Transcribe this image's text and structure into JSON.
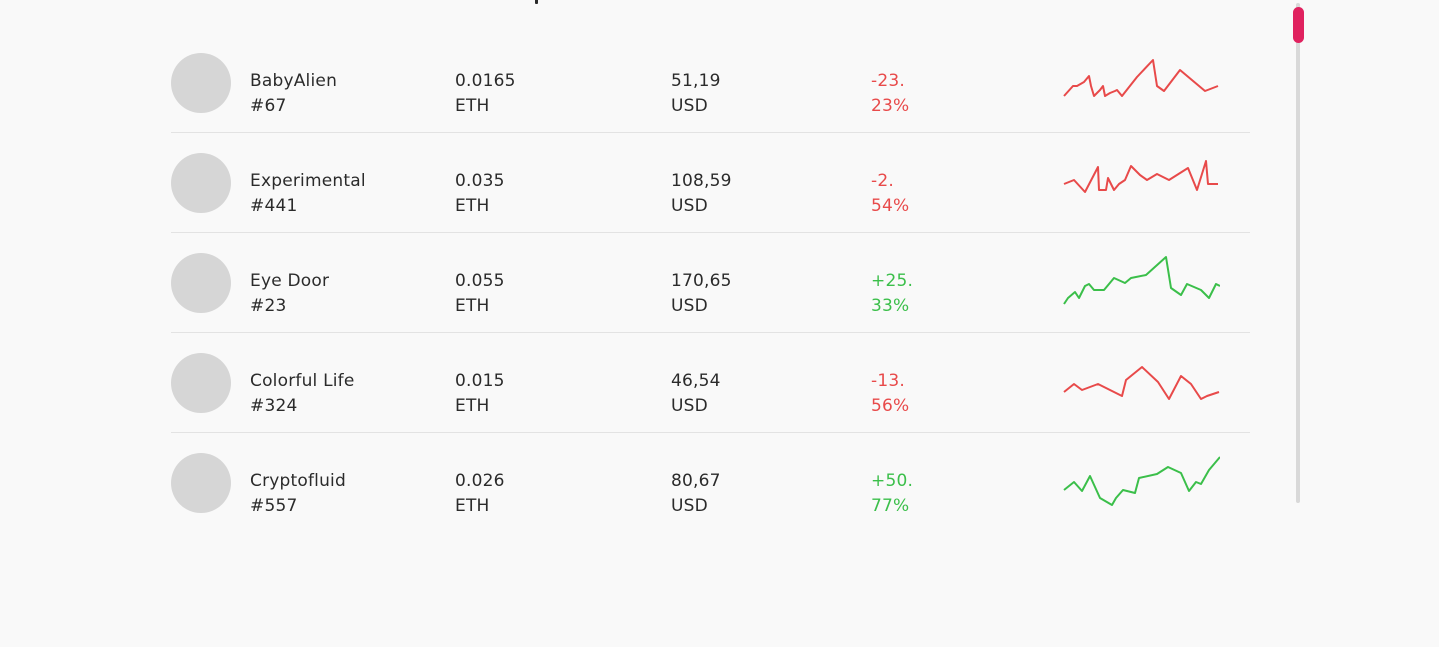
{
  "rows": [
    {
      "name": "BabyAlien",
      "id": "#67",
      "eth_value": "0.0165",
      "eth_unit": "ETH",
      "usd_value": "51,19",
      "usd_unit": "USD",
      "change_line1": "-23.",
      "change_line2": "23%",
      "trend": "neg"
    },
    {
      "name": "Experimental",
      "id": "#441",
      "eth_value": "0.035",
      "eth_unit": "ETH",
      "usd_value": "108,59",
      "usd_unit": "USD",
      "change_line1": "-2.",
      "change_line2": "54%",
      "trend": "neg"
    },
    {
      "name": "Eye Door",
      "id": "#23",
      "eth_value": "0.055",
      "eth_unit": "ETH",
      "usd_value": "170,65",
      "usd_unit": "USD",
      "change_line1": "+25.",
      "change_line2": "33%",
      "trend": "pos"
    },
    {
      "name": "Colorful Life",
      "id": "#324",
      "eth_value": "0.015",
      "eth_unit": "ETH",
      "usd_value": "46,54",
      "usd_unit": "USD",
      "change_line1": "-13.",
      "change_line2": "56%",
      "trend": "neg"
    },
    {
      "name": "Cryptofluid",
      "id": "#557",
      "eth_value": "0.026",
      "eth_unit": "ETH",
      "usd_value": "80,67",
      "usd_unit": "USD",
      "change_line1": "+50.",
      "change_line2": "77%",
      "trend": "pos"
    }
  ],
  "colors": {
    "negative": "#e84a4a",
    "positive": "#3bbf4a",
    "scroll_thumb": "#e0225f",
    "avatar_placeholder": "#d6d6d6"
  }
}
